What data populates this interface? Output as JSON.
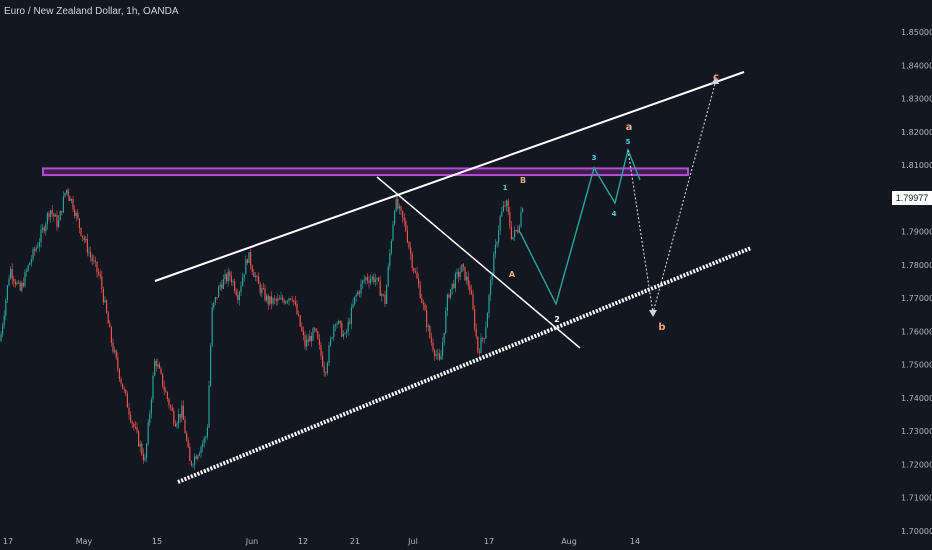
{
  "header": {
    "title": "Euro / New Zealand Dollar, 1h, OANDA"
  },
  "last_price": "1.79977",
  "colors": {
    "background": "#131722",
    "up": "#26a69a",
    "down": "#ef5350",
    "resistance_zone": "#9c27b0",
    "projection": "#26a69a",
    "labels_orange": "#f5a97f",
    "labels_cyan": "#4dd0e1",
    "trendline": "#ffffff"
  },
  "chart_data": {
    "type": "candlestick",
    "title": "Euro / New Zealand Dollar, 1h, OANDA",
    "y_axis": {
      "ticks": [
        "1.85000",
        "1.84000",
        "1.83000",
        "1.82000",
        "1.81000",
        "1.79000",
        "1.78000",
        "1.77000",
        "1.76000",
        "1.75000",
        "1.74000",
        "1.73000",
        "1.72000",
        "1.71000",
        "1.70000"
      ],
      "range": [
        1.7,
        1.856
      ]
    },
    "x_axis": {
      "ticks": [
        "17",
        "May",
        "15",
        "Jun",
        "12",
        "21",
        "Jul",
        "17",
        "Aug",
        "14"
      ]
    },
    "price_path": [
      [
        0,
        1.757
      ],
      [
        10,
        1.779
      ],
      [
        20,
        1.772
      ],
      [
        30,
        1.781
      ],
      [
        40,
        1.788
      ],
      [
        50,
        1.797
      ],
      [
        58,
        1.792
      ],
      [
        66,
        1.803
      ],
      [
        72,
        1.799
      ],
      [
        80,
        1.791
      ],
      [
        90,
        1.783
      ],
      [
        100,
        1.776
      ],
      [
        112,
        1.756
      ],
      [
        122,
        1.744
      ],
      [
        132,
        1.733
      ],
      [
        145,
        1.721
      ],
      [
        155,
        1.752
      ],
      [
        165,
        1.742
      ],
      [
        175,
        1.733
      ],
      [
        182,
        1.736
      ],
      [
        190,
        1.72
      ],
      [
        200,
        1.725
      ],
      [
        207,
        1.729
      ],
      [
        212,
        1.766
      ],
      [
        220,
        1.774
      ],
      [
        230,
        1.777
      ],
      [
        238,
        1.771
      ],
      [
        248,
        1.783
      ],
      [
        258,
        1.774
      ],
      [
        268,
        1.769
      ],
      [
        280,
        1.769
      ],
      [
        292,
        1.771
      ],
      [
        305,
        1.756
      ],
      [
        315,
        1.76
      ],
      [
        325,
        1.748
      ],
      [
        335,
        1.764
      ],
      [
        345,
        1.758
      ],
      [
        355,
        1.77
      ],
      [
        365,
        1.776
      ],
      [
        375,
        1.776
      ],
      [
        385,
        1.769
      ],
      [
        395,
        1.799
      ],
      [
        405,
        1.792
      ],
      [
        412,
        1.781
      ],
      [
        420,
        1.772
      ],
      [
        430,
        1.758
      ],
      [
        440,
        1.75
      ],
      [
        448,
        1.771
      ],
      [
        456,
        1.776
      ],
      [
        462,
        1.779
      ],
      [
        470,
        1.773
      ],
      [
        478,
        1.754
      ],
      [
        485,
        1.76
      ],
      [
        492,
        1.778
      ],
      [
        500,
        1.794
      ],
      [
        506,
        1.799
      ],
      [
        512,
        1.788
      ],
      [
        518,
        1.791
      ],
      [
        523,
        1.799
      ]
    ],
    "resistance_zone": {
      "low": 1.807,
      "high": 1.809
    },
    "annotations": [
      {
        "text": "c",
        "color": "orange"
      },
      {
        "text": "a",
        "color": "orange"
      },
      {
        "text": "b",
        "color": "orange"
      },
      {
        "text": "B",
        "color": "orange"
      },
      {
        "text": "A",
        "color": "orange"
      },
      {
        "text": "1",
        "color": "cyan"
      },
      {
        "text": "3",
        "color": "cyan"
      },
      {
        "text": "4",
        "color": "cyan"
      },
      {
        "text": "5",
        "color": "cyan"
      },
      {
        "text": "2",
        "color": "white"
      }
    ]
  }
}
